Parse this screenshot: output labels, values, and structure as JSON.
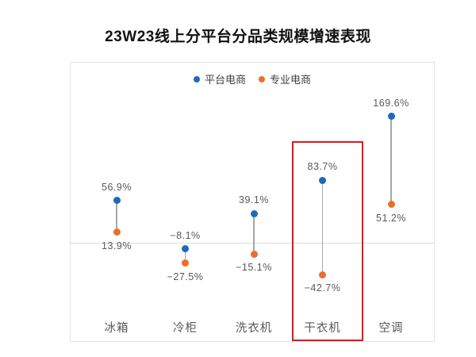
{
  "title": "23W23线上分平台分品类规模增速表现",
  "legend": {
    "items": [
      {
        "label": "平台电商",
        "color": "#1e69be"
      },
      {
        "label": "专业电商",
        "color": "#e8702a"
      }
    ]
  },
  "chart_data": {
    "type": "lollipop",
    "title": "23W23线上分平台分品类规模增速表现",
    "categories": [
      "冰箱",
      "冷柜",
      "洗衣机",
      "干衣机",
      "空调"
    ],
    "series": [
      {
        "name": "平台电商",
        "color": "#1e69be",
        "values": [
          56.9,
          -8.1,
          39.1,
          83.7,
          169.6
        ],
        "labels": [
          "56.9%",
          "−8.1%",
          "39.1%",
          "83.7%",
          "169.6%"
        ]
      },
      {
        "name": "专业电商",
        "color": "#e8702a",
        "values": [
          13.9,
          -27.5,
          -15.1,
          -42.7,
          51.2
        ],
        "labels": [
          "13.9%",
          "−27.5%",
          "−15.1%",
          "−42.7%",
          "51.2%"
        ]
      }
    ],
    "unit": "%",
    "baseline_value": 0,
    "grid": "zero-line-only",
    "legend_position": "top-center",
    "highlight": {
      "category": "干衣机",
      "index": 3,
      "box_color": "#e51717"
    },
    "colors": {
      "connector": "#a6a6a6",
      "zero_line": "#dcdcdc",
      "plot_border": "#e3e3e3",
      "label_text": "#595959",
      "title_text": "#111111"
    }
  }
}
